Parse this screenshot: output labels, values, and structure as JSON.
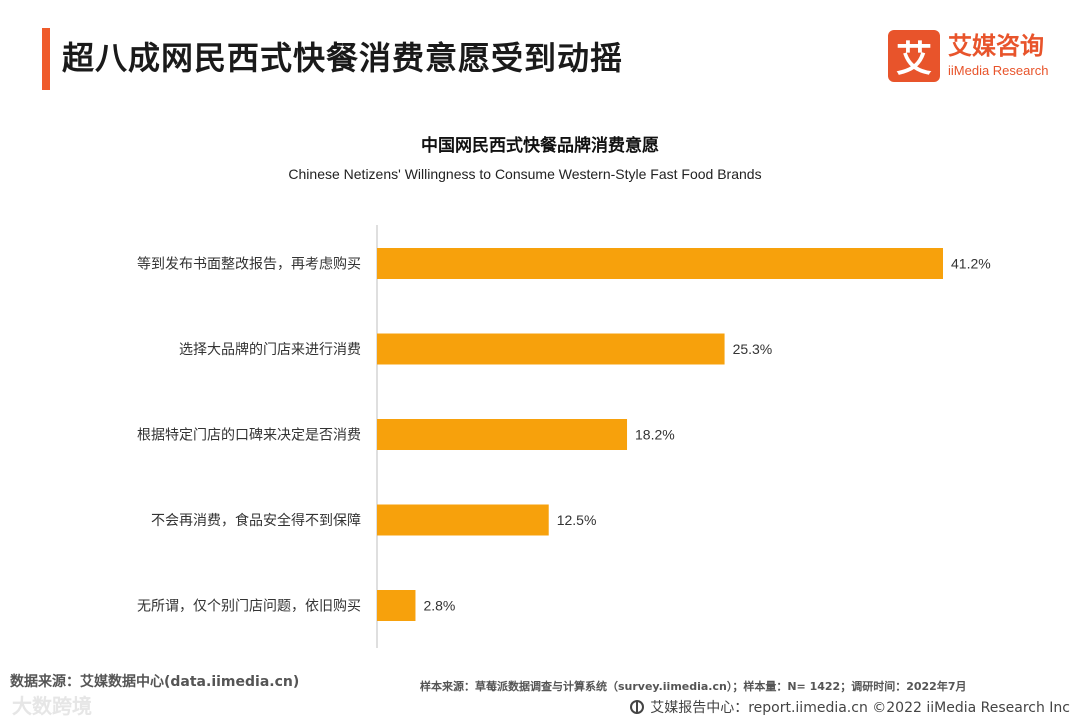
{
  "header": {
    "title": "超八成网民西式快餐消费意愿受到动摇",
    "logo_mark": "艾",
    "logo_cn": "艾媒咨询",
    "logo_en": "iiMedia Research"
  },
  "chart_data": {
    "type": "bar",
    "orientation": "horizontal",
    "title": "中国网民西式快餐品牌消费意愿",
    "subtitle": "Chinese Netizens' Willingness to Consume Western-Style Fast Food Brands",
    "categories": [
      "等到发布书面整改报告，再考虑购买",
      "选择大品牌的门店来进行消费",
      "根据特定门店的口碑来决定是否消费",
      "不会再消费，食品安全得不到保障",
      "无所谓，仅个别门店问题，依旧购买"
    ],
    "values": [
      41.2,
      25.3,
      18.2,
      12.5,
      2.8
    ],
    "value_labels": [
      "41.2%",
      "25.3%",
      "18.2%",
      "12.5%",
      "2.8%"
    ],
    "unit": "%",
    "xlim": [
      0,
      41.2
    ],
    "bar_color": "#f7a10c",
    "grid": false
  },
  "footer": {
    "source_left": "数据来源：艾媒数据中心(data.iimedia.cn)",
    "source_right": "样本来源：草莓派数据调查与计算系统（survey.iimedia.cn）；样本量：N= 1422；调研时间：2022年7月",
    "report": "艾媒报告中心：report.iimedia.cn  ©2022  iiMedia Research  Inc"
  },
  "watermark": "大数跨境",
  "colors": {
    "accent": "#ef5b2b",
    "brand": "#e8542b",
    "bar": "#f7a10c"
  }
}
